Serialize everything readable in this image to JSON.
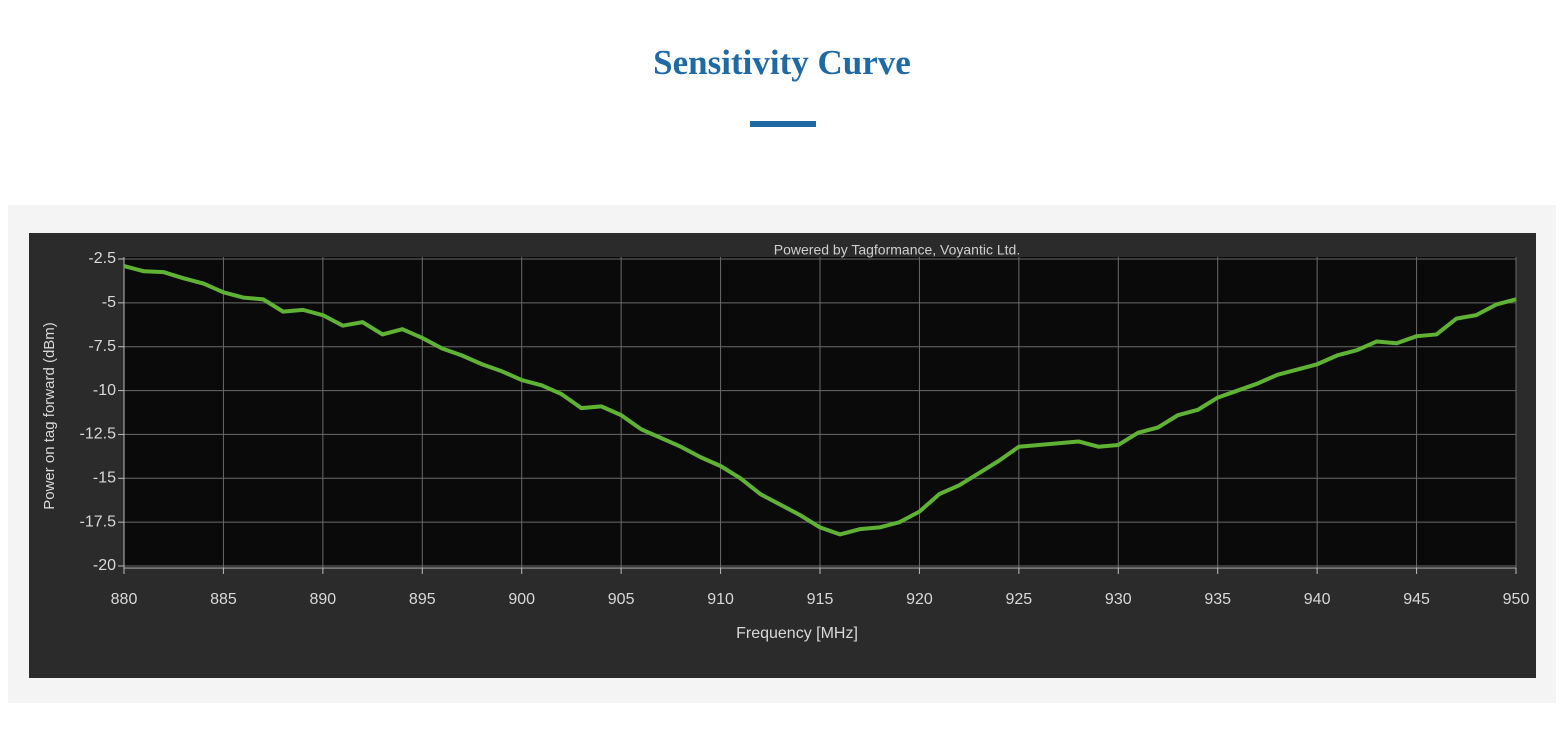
{
  "chart_data": {
    "type": "line",
    "title": "Sensitivity Curve",
    "annotation": "Powered by Tagformance, Voyantic Ltd.",
    "x_label": "Frequency [MHz]",
    "y_label": "Power on tag forward (dBm)",
    "x": [
      880,
      881,
      882,
      883,
      884,
      885,
      886,
      887,
      888,
      889,
      890,
      891,
      892,
      893,
      894,
      895,
      896,
      897,
      898,
      899,
      900,
      901,
      902,
      903,
      904,
      905,
      906,
      907,
      908,
      909,
      910,
      911,
      912,
      913,
      914,
      915,
      916,
      917,
      918,
      919,
      920,
      921,
      922,
      923,
      924,
      925,
      926,
      927,
      928,
      929,
      930,
      931,
      932,
      933,
      934,
      935,
      936,
      937,
      938,
      939,
      940,
      941,
      942,
      943,
      944,
      945,
      946,
      947,
      948,
      949,
      950
    ],
    "series": [
      {
        "name": "Power on tag forward",
        "color": "#5fb233",
        "values": [
          -2.9,
          -3.2,
          -3.25,
          -3.6,
          -3.9,
          -4.4,
          -4.7,
          -4.8,
          -5.5,
          -5.4,
          -5.7,
          -6.3,
          -6.1,
          -6.8,
          -6.5,
          -7.0,
          -7.6,
          -8.0,
          -8.5,
          -8.9,
          -9.4,
          -9.7,
          -10.2,
          -11.0,
          -10.9,
          -11.4,
          -12.2,
          -12.7,
          -13.2,
          -13.8,
          -14.3,
          -15.0,
          -15.9,
          -16.5,
          -17.1,
          -17.8,
          -18.2,
          -17.9,
          -17.8,
          -17.5,
          -16.9,
          -15.9,
          -15.4,
          -14.7,
          -14.0,
          -13.2,
          -13.1,
          -13.0,
          -12.9,
          -13.2,
          -13.1,
          -12.4,
          -12.1,
          -11.4,
          -11.1,
          -10.4,
          -10.0,
          -9.6,
          -9.1,
          -8.8,
          -8.5,
          -8.0,
          -7.7,
          -7.2,
          -7.3,
          -6.9,
          -6.8,
          -5.9,
          -5.7,
          -5.1,
          -4.8
        ]
      }
    ],
    "xlim": [
      880,
      950
    ],
    "xticks": [
      880,
      885,
      890,
      895,
      900,
      905,
      910,
      915,
      920,
      925,
      930,
      935,
      940,
      945,
      950
    ],
    "ylim": [
      -20,
      -2.5
    ],
    "yticks": [
      -2.5,
      -5,
      -7.5,
      -10,
      -12.5,
      -15,
      -17.5,
      -20
    ],
    "grid": true
  }
}
